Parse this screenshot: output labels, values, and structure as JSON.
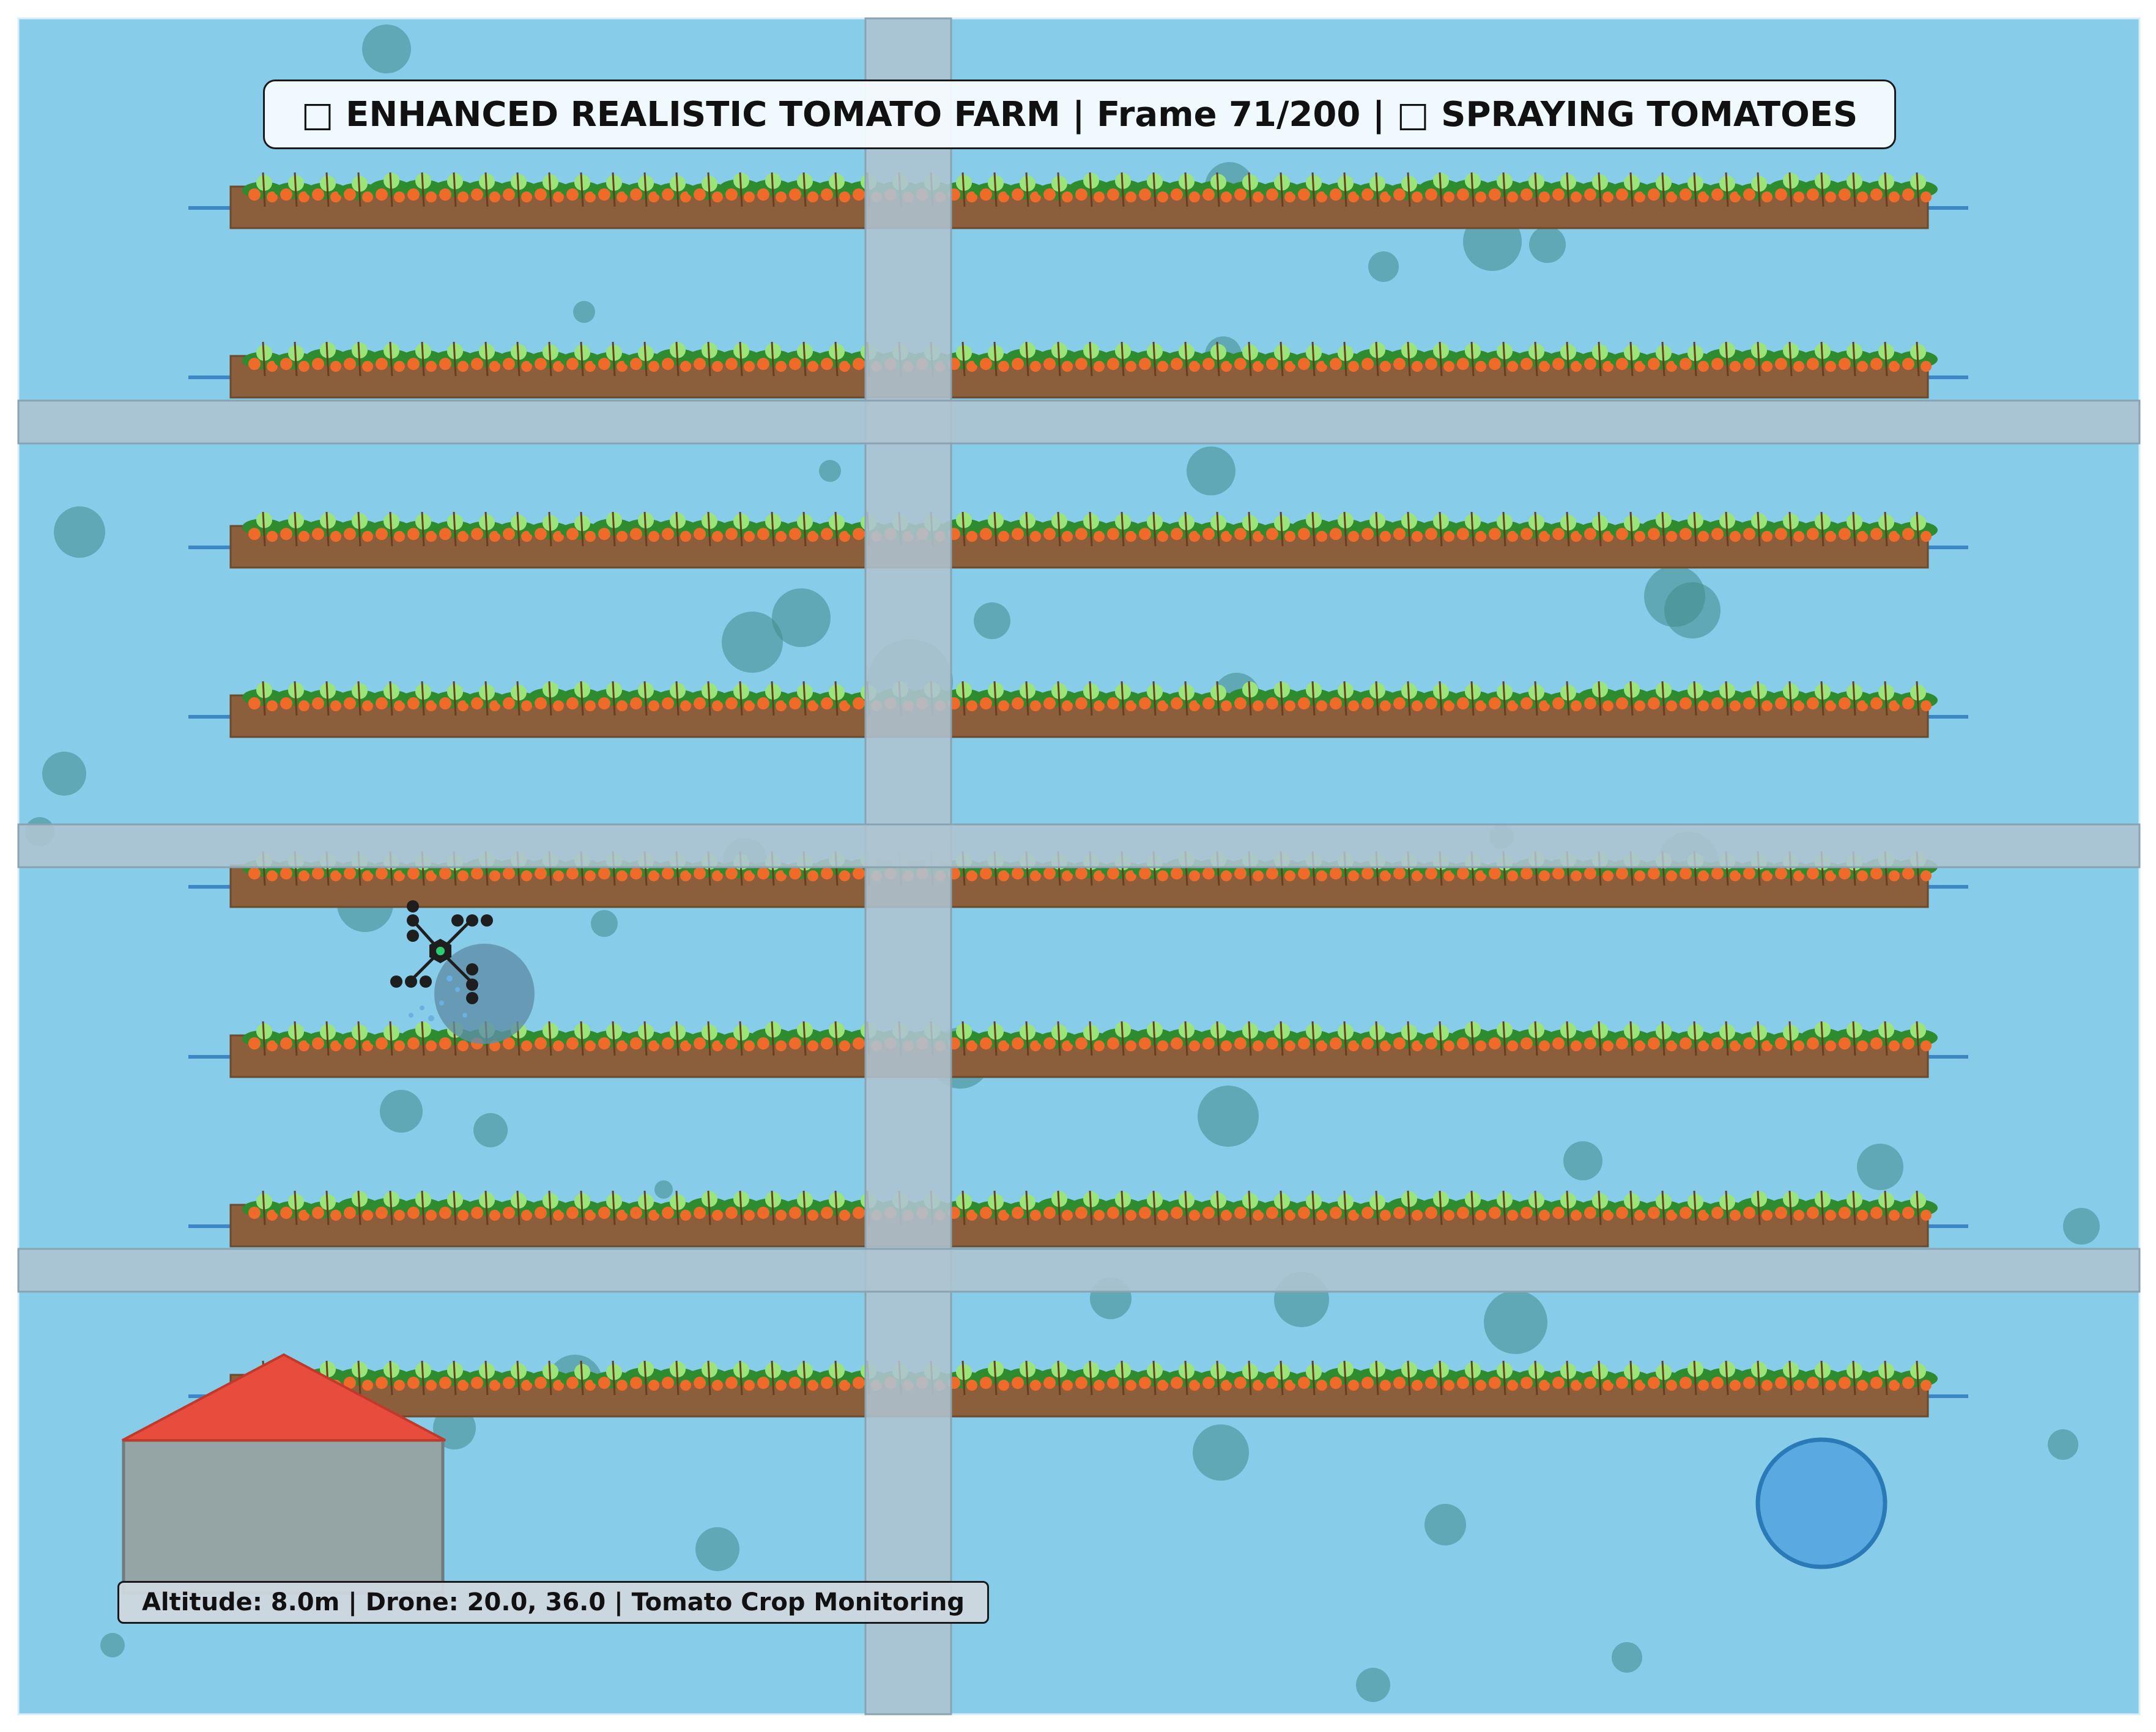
{
  "title": {
    "icon_left": "tomato-icon",
    "text": "ENHANCED REALISTIC TOMATO FARM | Frame 71/200 |",
    "icon_right": "spray-icon",
    "status": "SPRAYING TOMATOES",
    "full": "□ ENHANCED REALISTIC TOMATO FARM | Frame 71/200 | □ SPRAYING TOMATOES"
  },
  "status_bar": {
    "text": "Altitude: 8.0m | Drone: 20.0, 36.0 | Tomato Crop Monitoring"
  },
  "simulation": {
    "frame": 71,
    "total_frames": 200,
    "mode": "SPRAYING TOMATOES",
    "altitude_m": 8.0,
    "drone_position": [
      20.0,
      36.0
    ],
    "crop_rows": 8
  },
  "colors": {
    "field": "#87cdea",
    "road": "#aec4d0",
    "soil": "#8b5e3c",
    "leaf": "#2e8b2e",
    "tomato": "#f06a2a",
    "barn_roof": "#e74c3c",
    "barn_wall": "#95a5a6",
    "pond": "#5aa9e0",
    "tree_shadow": "#3f8a8a",
    "drone": "#1e1e1e"
  },
  "icons": [
    "tomato-icon",
    "spray-icon",
    "drone-icon",
    "barn-icon",
    "pond-icon"
  ]
}
